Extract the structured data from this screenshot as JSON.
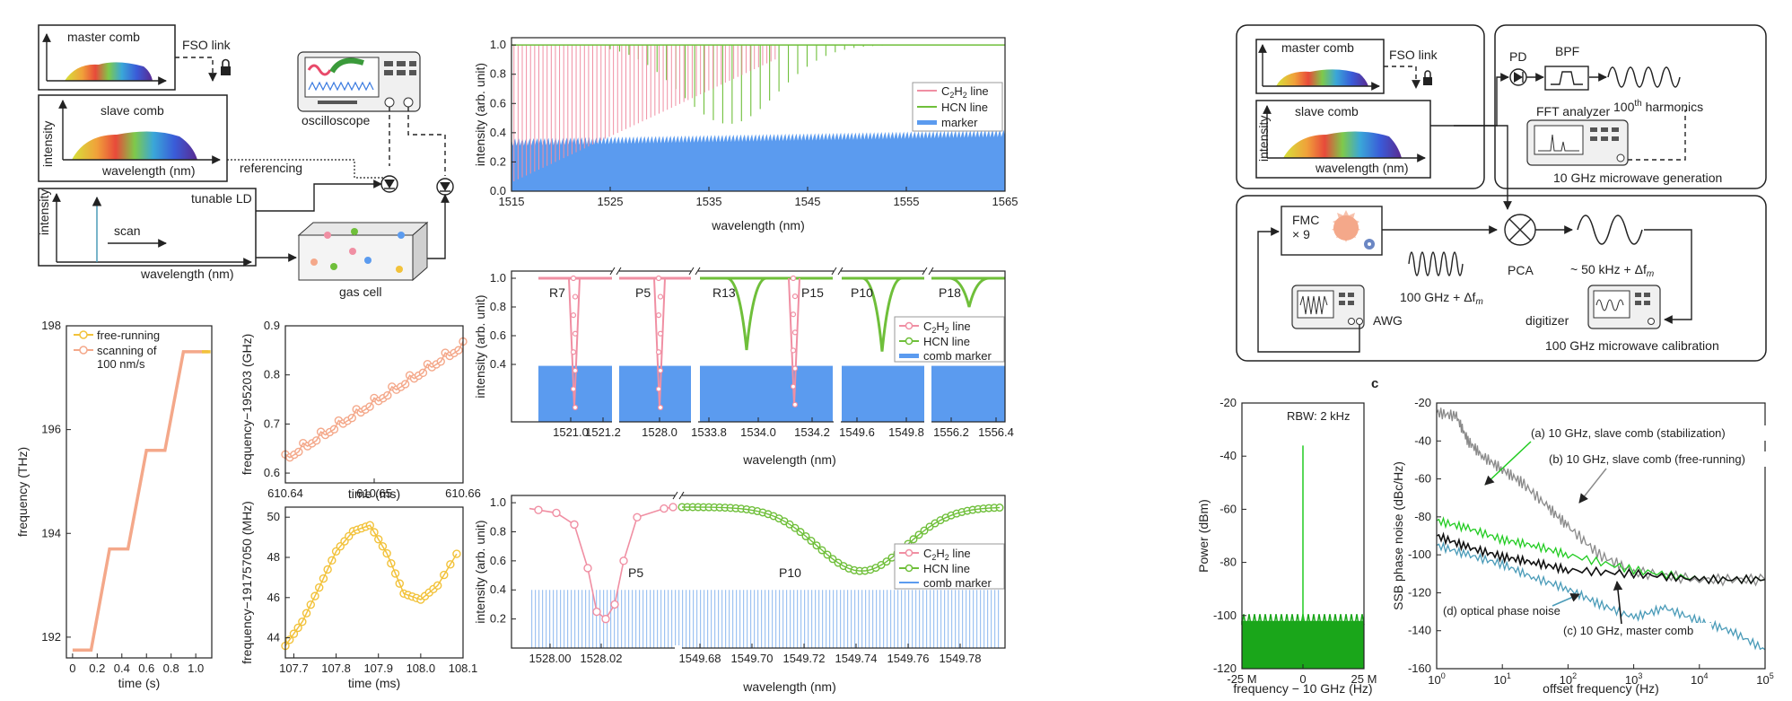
{
  "colors": {
    "c2h2": "#f08fa3",
    "hcn": "#6fbf3a",
    "marker": "#5b9bef",
    "freerun": "#f2c23a",
    "scan": "#f4a88a",
    "black": "#111111",
    "gray": "#8a8a8a",
    "green": "#22cc22",
    "teal": "#4a9bb8"
  },
  "setup_left": {
    "master_comb": "master comb",
    "fso_link": "FSO link",
    "slave_comb": "slave comb",
    "intensity": "intensity",
    "wavelength_nm": "wavelength (nm)",
    "referencing": "referencing",
    "oscilloscope": "oscilloscope",
    "tunable_ld": "tunable LD",
    "scan": "scan",
    "gas_cell": "gas cell"
  },
  "setup_right": {
    "master_comb": "master comb",
    "fso_link": "FSO link",
    "slave_comb": "slave comb",
    "intensity": "intensity",
    "wavelength_nm": "wavelength (nm)",
    "pd": "PD",
    "bpf": "BPF",
    "harmonics_base": "100",
    "harmonics_sup": "th",
    "harmonics_rest": " harmonics",
    "fft_analyzer": "FFT analyzer",
    "gen_label": "10 GHz microwave generation",
    "fmc": "FMC",
    "x9": "× 9",
    "pca": "PCA",
    "f100": "100 GHz + Δf",
    "fm_sub": "m",
    "awg": "AWG",
    "f50": "~ 50 kHz + Δf",
    "digitizer": "digitizer",
    "cal_label": "100 GHz microwave calibration"
  },
  "panel_c_label": "c",
  "chart_data": [
    {
      "id": "fig1-spectrum",
      "type": "area",
      "xlabel": "wavelength (nm)",
      "ylabel": "intensity (arb. unit)",
      "xlim": [
        1515,
        1565
      ],
      "ylim": [
        0,
        1.05
      ],
      "xticks": [
        "1515",
        "1525",
        "1535",
        "1545",
        "1555",
        "1565"
      ],
      "yticks": [
        "0.0",
        "0.2",
        "0.4",
        "0.6",
        "0.8",
        "1.0"
      ],
      "legend": [
        {
          "sub": [
            "C",
            "2",
            "H",
            "2",
            " line"
          ]
        },
        {
          "text": "HCN line"
        },
        {
          "text": "marker"
        }
      ],
      "series": [
        {
          "name": "C2H2 line",
          "x_range": [
            1515,
            1542
          ],
          "min": 0.06
        },
        {
          "name": "HCN line",
          "x_range": [
            1525,
            1565
          ],
          "envelope_min": 0.46,
          "envelope_center": 1537
        },
        {
          "name": "marker",
          "level": 0.3,
          "top_left": 0.33,
          "top_right": 0.39
        }
      ]
    },
    {
      "id": "fig-zoom-lines",
      "type": "line",
      "xlabel": "wavelength (nm)",
      "ylabel": "intensity (arb. unit)",
      "ylim": [
        0,
        1.05
      ],
      "yticks": [
        "0.4",
        "0.6",
        "0.8",
        "1.0"
      ],
      "xticks": [
        "1521.0",
        "1521.2",
        "1528.0",
        "1533.8",
        "1534.0",
        "1534.2",
        "1549.6",
        "1549.8",
        "1556.2",
        "1556.4"
      ],
      "line_labels": [
        "R7",
        "P5",
        "R13",
        "P15",
        "P10",
        "P18"
      ],
      "legend": [
        {
          "sub": [
            "C",
            "2",
            "H",
            "2",
            " line"
          ]
        },
        {
          "text": "HCN line"
        },
        {
          "text": "comb marker"
        }
      ]
    },
    {
      "id": "fig-zoom-P5-P10",
      "type": "line",
      "xlabel": "wavelength (nm)",
      "ylabel": "intensity (arb. unit)",
      "ylim": [
        0,
        1.05
      ],
      "yticks": [
        "0.2",
        "0.4",
        "0.6",
        "0.8",
        "1.0"
      ],
      "xticks": [
        "1528.00",
        "1528.02",
        "1549.68",
        "1549.70",
        "1549.72",
        "1549.74",
        "1549.76",
        "1549.78"
      ],
      "line_labels": [
        "P5",
        "P10"
      ],
      "legend": [
        {
          "sub": [
            "C",
            "2",
            "H",
            "2",
            " line"
          ]
        },
        {
          "text": "HCN line"
        },
        {
          "text": "comb marker"
        }
      ]
    },
    {
      "id": "fig-freq-steps",
      "type": "line",
      "xlabel": "time (s)",
      "ylabel": "frequency (THz)",
      "xlim": [
        0,
        1.1
      ],
      "ylim": [
        191.6,
        198
      ],
      "xticks": [
        "0",
        "0.2",
        "0.4",
        "0.6",
        "0.8",
        "1.0"
      ],
      "yticks": [
        "192",
        "194",
        "196",
        "198"
      ],
      "legend": [
        "free-running",
        "scanning of",
        "100 nm/s"
      ],
      "series": [
        {
          "name": "scanning of 100 nm/s",
          "x": [
            0,
            0.15,
            0.3,
            0.45,
            0.6,
            0.75,
            0.9,
            1.05,
            1.1
          ],
          "y": [
            191.75,
            191.75,
            193.7,
            193.7,
            195.6,
            195.6,
            197.5,
            197.5,
            197.5
          ]
        }
      ]
    },
    {
      "id": "fig-fine-scan",
      "type": "line",
      "xlabel": "time (ms)",
      "ylabel": "frequency−195203 (GHz)",
      "xlim": [
        610.64,
        610.66
      ],
      "ylim": [
        0.58,
        0.9
      ],
      "xticks": [
        "610.64",
        "610.65",
        "610.66"
      ],
      "yticks": [
        "0.6",
        "0.7",
        "0.8",
        "0.9"
      ],
      "series": [
        {
          "name": "scan",
          "x_start": 610.64,
          "x_end": 610.66,
          "y_start": 0.63,
          "y_end": 0.86
        }
      ]
    },
    {
      "id": "fig-free-running",
      "type": "line",
      "xlabel": "time (ms)",
      "ylabel": "frequency−191757050 (MHz)",
      "xlim": [
        107.68,
        108.1
      ],
      "ylim": [
        43,
        50.5
      ],
      "xticks": [
        "107.7",
        "107.8",
        "107.9",
        "108.0",
        "108.1"
      ],
      "yticks": [
        "44",
        "46",
        "48",
        "50"
      ],
      "series": [
        {
          "name": "free-running",
          "x": [
            107.68,
            107.72,
            107.76,
            107.8,
            107.84,
            107.88,
            107.92,
            107.96,
            108.0,
            108.04,
            108.1
          ],
          "y": [
            43.6,
            44.8,
            46.5,
            48.3,
            49.3,
            49.6,
            48.2,
            46.2,
            45.9,
            46.6,
            48.7
          ]
        }
      ]
    },
    {
      "id": "fig-rbw-spectrum",
      "type": "line",
      "xlabel": "frequency − 10 GHz (Hz)",
      "ylabel": "Power (dBm)",
      "ylim": [
        -120,
        -20
      ],
      "yticks": [
        "-20",
        "-40",
        "-60",
        "-80",
        "-100",
        "-120"
      ],
      "xticks": [
        "-25 M",
        "0",
        "25 M"
      ],
      "annotation": "RBW: 2 kHz",
      "series": [
        {
          "name": "spectrum",
          "peak": -36,
          "noise_floor": -104
        }
      ]
    },
    {
      "id": "fig-phase-noise",
      "type": "line",
      "xlabel": "offset frequency (Hz)",
      "ylabel": "SSB phase noise (dBc/Hz)",
      "xscale": "log",
      "xlim": [
        1,
        100000
      ],
      "ylim": [
        -160,
        -20
      ],
      "yticks": [
        "-20",
        "-40",
        "-60",
        "-80",
        "-100",
        "-120",
        "-140",
        "-160"
      ],
      "xticks": [
        {
          "b": "10",
          "e": "0"
        },
        {
          "b": "10",
          "e": "1"
        },
        {
          "b": "10",
          "e": "2"
        },
        {
          "b": "10",
          "e": "3"
        },
        {
          "b": "10",
          "e": "4"
        },
        {
          "b": "10",
          "e": "5"
        }
      ],
      "annotations": [
        "(a) 10 GHz, slave comb (stabilization)",
        "(b) 10 GHz, slave comb (free-running)",
        "(c) 10 GHz, master comb",
        "(d) optical phase noise"
      ],
      "series": [
        {
          "name": "(a) 10 GHz, slave comb (stabilization)",
          "x": [
            1,
            3,
            10,
            30,
            100,
            1000,
            10000,
            100000
          ],
          "y": [
            -82,
            -86,
            -92,
            -95,
            -100,
            -108,
            -113,
            -113
          ]
        },
        {
          "name": "(b) 10 GHz, slave comb (free-running)",
          "x": [
            1,
            2,
            3,
            5,
            10,
            20,
            50,
            100,
            300,
            1000,
            10000,
            100000
          ],
          "y": [
            -25,
            -27,
            -40,
            -48,
            -55,
            -62,
            -75,
            -85,
            -100,
            -109,
            -113,
            -113
          ]
        },
        {
          "name": "(c) 10 GHz, master comb",
          "x": [
            1,
            3,
            10,
            30,
            100,
            1000,
            10000,
            100000
          ],
          "y": [
            -90,
            -96,
            -101,
            -104,
            -108,
            -110,
            -113,
            -113
          ]
        },
        {
          "name": "(d) optical phase noise",
          "x": [
            1,
            3,
            10,
            30,
            100,
            300,
            1000,
            3000,
            10000,
            30000,
            100000
          ],
          "y": [
            -95,
            -100,
            -105,
            -112,
            -118,
            -126,
            -133,
            -128,
            -135,
            -140,
            -150
          ]
        }
      ]
    }
  ]
}
